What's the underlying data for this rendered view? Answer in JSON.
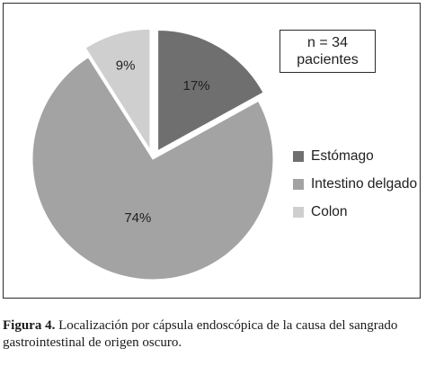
{
  "chart_data": {
    "type": "pie",
    "categories": [
      "Estómago",
      "Intestino delgado",
      "Colon"
    ],
    "values": [
      17,
      74,
      9
    ],
    "value_labels": [
      "17%",
      "74%",
      "9%"
    ],
    "colors": [
      "#6f6f6f",
      "#a3a3a3",
      "#cfcfcf"
    ],
    "exploded": [
      "Estómago",
      "Colon"
    ],
    "legend_position": "right",
    "annotation": {
      "line1": "n = 34",
      "line2": "pacientes"
    }
  },
  "caption": {
    "label": "Figura 4.",
    "text": " Localización por cápsula endoscópica de la causa del sangrado gastrointestinal de origen oscuro."
  }
}
